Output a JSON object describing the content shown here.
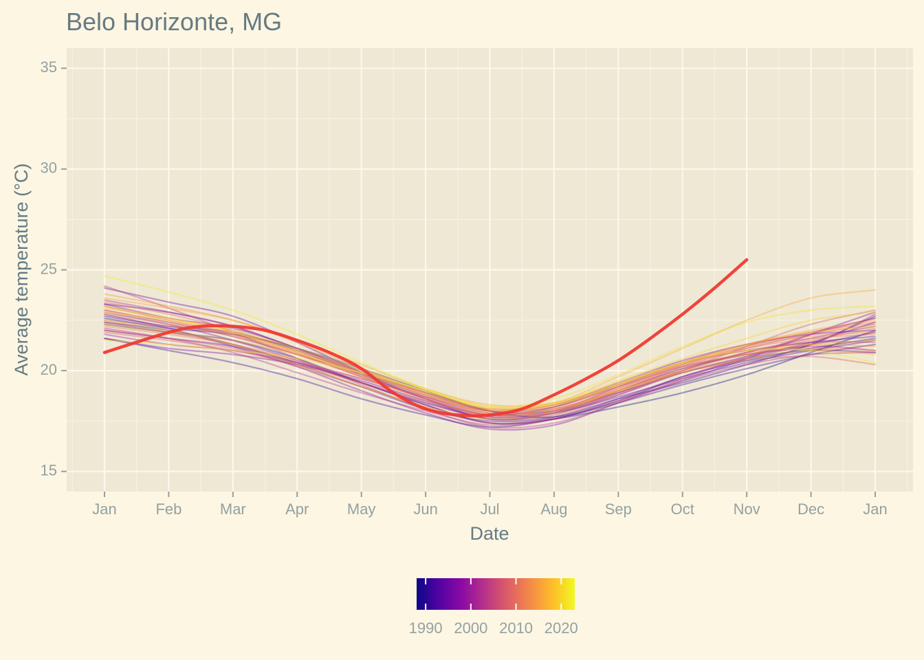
{
  "chart_data": {
    "type": "line",
    "title": "Belo Horizonte, MG",
    "xlabel": "Date",
    "ylabel": "Average temperature (°C)",
    "ylim": [
      14,
      36
    ],
    "yticks": [
      15,
      20,
      25,
      30,
      35
    ],
    "x_tick_labels": [
      "Jan",
      "Feb",
      "Mar",
      "Apr",
      "May",
      "Jun",
      "Jul",
      "Aug",
      "Sep",
      "Oct",
      "Nov",
      "Dec",
      "Jan"
    ],
    "x_month_index": [
      1,
      2,
      3,
      4,
      5,
      6,
      7,
      8,
      9,
      10,
      11,
      12,
      13
    ],
    "grid": true,
    "legend": {
      "type": "colorbar",
      "placement": "bottom",
      "range": [
        1988,
        2023
      ],
      "labels": [
        "1990",
        "2000",
        "2010",
        "2020"
      ],
      "label_values": [
        1990,
        2000,
        2010,
        2020
      ],
      "colors": [
        "#0d0887",
        "#5302a3",
        "#8b0aa5",
        "#b83289",
        "#db5c68",
        "#f48849",
        "#febc2a",
        "#f0f921"
      ]
    },
    "highlight_series": {
      "name": "2023",
      "color": "#f03a32",
      "x": [
        1,
        2,
        2.5,
        3,
        3.5,
        4,
        4.5,
        5,
        5.5,
        6,
        6.5,
        7,
        7.5,
        8,
        8.5,
        9,
        9.5,
        10,
        10.5,
        11
      ],
      "y": [
        20.9,
        21.9,
        22.2,
        22.2,
        22.0,
        21.5,
        20.9,
        20.1,
        18.9,
        18.1,
        17.8,
        17.8,
        18.1,
        18.8,
        19.6,
        20.5,
        21.6,
        22.8,
        24.1,
        25.5
      ]
    },
    "background_series": [
      {
        "year": 1988,
        "y": [
          22.3,
          21.9,
          21.5,
          20.6,
          19.4,
          18.3,
          17.4,
          17.6,
          18.2,
          18.9,
          19.8,
          20.9,
          22.0
        ]
      },
      {
        "year": 1989,
        "y": [
          22.6,
          22.1,
          21.8,
          21.1,
          20.1,
          19.0,
          18.0,
          17.7,
          18.5,
          19.7,
          20.5,
          21.1,
          21.6
        ]
      },
      {
        "year": 1990,
        "y": [
          22.4,
          22.0,
          21.3,
          20.3,
          19.2,
          18.1,
          17.5,
          17.7,
          18.6,
          19.4,
          20.3,
          21.3,
          22.7
        ]
      },
      {
        "year": 1991,
        "y": [
          21.6,
          21.0,
          20.4,
          19.6,
          18.6,
          17.8,
          17.2,
          17.6,
          18.4,
          19.3,
          20.1,
          20.8,
          21.3
        ]
      },
      {
        "year": 1992,
        "y": [
          22.7,
          22.2,
          21.9,
          21.0,
          19.8,
          18.6,
          17.6,
          17.9,
          19.0,
          20.1,
          20.8,
          21.3,
          21.9
        ]
      },
      {
        "year": 1993,
        "y": [
          23.3,
          22.9,
          22.2,
          21.1,
          20.0,
          18.9,
          18.0,
          18.0,
          18.9,
          19.9,
          20.6,
          21.0,
          20.9
        ]
      },
      {
        "year": 1994,
        "y": [
          22.0,
          21.6,
          21.2,
          20.4,
          19.4,
          18.4,
          17.7,
          17.9,
          18.7,
          19.6,
          20.4,
          21.0,
          21.5
        ]
      },
      {
        "year": 1995,
        "y": [
          24.1,
          23.4,
          22.7,
          21.4,
          19.9,
          18.6,
          17.8,
          18.2,
          19.3,
          20.4,
          21.0,
          21.4,
          21.7
        ]
      },
      {
        "year": 1996,
        "y": [
          21.6,
          21.1,
          20.8,
          20.3,
          19.5,
          18.5,
          17.6,
          17.9,
          18.8,
          19.9,
          20.7,
          21.4,
          22.4
        ]
      },
      {
        "year": 1997,
        "y": [
          22.8,
          22.1,
          21.2,
          20.2,
          19.0,
          17.9,
          17.1,
          17.3,
          18.4,
          19.5,
          20.6,
          21.8,
          22.9
        ]
      },
      {
        "year": 1998,
        "y": [
          23.3,
          22.6,
          22.1,
          21.1,
          19.9,
          18.9,
          18.1,
          18.3,
          19.4,
          20.5,
          21.3,
          21.8,
          22.0
        ]
      },
      {
        "year": 1999,
        "y": [
          22.9,
          22.3,
          21.5,
          20.5,
          19.4,
          18.3,
          17.4,
          17.6,
          18.6,
          19.7,
          20.6,
          21.2,
          21.0
        ]
      },
      {
        "year": 2000,
        "y": [
          21.8,
          21.3,
          21.0,
          20.4,
          19.6,
          18.7,
          17.9,
          18.1,
          19.0,
          20.0,
          20.9,
          21.6,
          22.2
        ]
      },
      {
        "year": 2001,
        "y": [
          23.0,
          22.4,
          21.7,
          20.8,
          19.8,
          18.8,
          18.0,
          18.2,
          19.2,
          20.2,
          20.8,
          21.3,
          22.8
        ]
      },
      {
        "year": 2002,
        "y": [
          23.5,
          22.9,
          22.2,
          21.1,
          19.9,
          18.7,
          17.8,
          18.0,
          19.2,
          20.4,
          21.3,
          21.9,
          22.6
        ]
      },
      {
        "year": 2003,
        "y": [
          22.1,
          21.6,
          20.9,
          19.9,
          18.9,
          18.0,
          17.3,
          17.6,
          18.5,
          19.5,
          20.3,
          20.8,
          20.9
        ]
      },
      {
        "year": 2004,
        "y": [
          24.2,
          23.1,
          21.9,
          20.6,
          19.3,
          18.1,
          17.2,
          17.4,
          18.4,
          19.6,
          20.7,
          21.8,
          22.6
        ]
      },
      {
        "year": 2005,
        "y": [
          22.4,
          21.9,
          21.3,
          20.4,
          19.4,
          18.4,
          17.6,
          17.8,
          18.9,
          20.0,
          20.9,
          21.4,
          21.4
        ]
      },
      {
        "year": 2006,
        "y": [
          23.2,
          22.5,
          21.8,
          20.8,
          19.7,
          18.6,
          17.7,
          17.9,
          19.0,
          20.2,
          21.1,
          21.8,
          22.3
        ]
      },
      {
        "year": 2007,
        "y": [
          22.0,
          21.6,
          21.1,
          20.2,
          19.2,
          18.2,
          17.4,
          17.7,
          18.8,
          20.0,
          21.2,
          22.3,
          23.0
        ]
      },
      {
        "year": 2008,
        "y": [
          21.9,
          21.5,
          21.0,
          20.3,
          19.4,
          18.5,
          17.8,
          18.0,
          18.9,
          19.9,
          20.5,
          20.7,
          20.3
        ]
      },
      {
        "year": 2009,
        "y": [
          22.5,
          22.2,
          21.8,
          21.0,
          19.9,
          18.8,
          17.9,
          18.1,
          19.1,
          20.3,
          21.2,
          21.9,
          22.4
        ]
      },
      {
        "year": 2010,
        "y": [
          23.4,
          22.8,
          22.0,
          20.9,
          19.7,
          18.6,
          17.8,
          18.0,
          19.0,
          20.1,
          20.9,
          21.5,
          22.1
        ]
      },
      {
        "year": 2011,
        "y": [
          22.2,
          21.8,
          21.3,
          20.5,
          19.6,
          18.7,
          18.0,
          18.3,
          19.3,
          20.3,
          21.1,
          21.6,
          21.8
        ]
      },
      {
        "year": 2012,
        "y": [
          22.8,
          22.3,
          21.7,
          20.8,
          19.7,
          18.6,
          17.8,
          18.0,
          19.1,
          20.2,
          20.8,
          21.1,
          21.0
        ]
      },
      {
        "year": 2013,
        "y": [
          23.0,
          22.4,
          21.8,
          20.9,
          19.9,
          18.9,
          18.1,
          18.3,
          19.2,
          20.3,
          21.2,
          21.7,
          21.9
        ]
      },
      {
        "year": 2014,
        "y": [
          23.8,
          23.2,
          22.5,
          21.4,
          20.1,
          18.9,
          18.0,
          18.2,
          19.3,
          20.4,
          21.0,
          21.3,
          21.2
        ]
      },
      {
        "year": 2015,
        "y": [
          23.6,
          23.1,
          22.5,
          21.5,
          20.3,
          19.1,
          18.3,
          18.4,
          19.3,
          20.4,
          21.3,
          22.0,
          22.5
        ]
      },
      {
        "year": 2016,
        "y": [
          22.3,
          21.9,
          21.5,
          20.8,
          19.9,
          18.9,
          18.1,
          18.4,
          19.7,
          21.1,
          22.5,
          23.6,
          24.0
        ]
      },
      {
        "year": 2017,
        "y": [
          22.5,
          22.0,
          21.3,
          20.3,
          19.2,
          18.2,
          17.6,
          17.9,
          19.0,
          20.0,
          20.8,
          21.3,
          21.5
        ]
      },
      {
        "year": 2018,
        "y": [
          23.2,
          22.6,
          21.9,
          20.9,
          19.8,
          18.8,
          17.9,
          18.1,
          19.0,
          19.9,
          20.6,
          21.0,
          20.8
        ]
      },
      {
        "year": 2019,
        "y": [
          23.1,
          22.6,
          22.0,
          21.1,
          20.1,
          19.1,
          18.2,
          18.4,
          19.4,
          20.4,
          21.3,
          21.9,
          22.2
        ]
      },
      {
        "year": 2020,
        "y": [
          22.9,
          22.5,
          21.9,
          21.0,
          20.0,
          19.0,
          18.2,
          18.4,
          19.5,
          20.6,
          21.6,
          22.5,
          22.9
        ]
      },
      {
        "year": 2021,
        "y": [
          21.5,
          21.3,
          21.0,
          20.6,
          19.9,
          19.0,
          18.2,
          18.6,
          19.8,
          21.2,
          22.4,
          23.0,
          23.2
        ]
      },
      {
        "year": 2022,
        "y": [
          24.7,
          23.9,
          23.0,
          21.8,
          20.4,
          19.1,
          18.1,
          18.3,
          19.3,
          20.4,
          21.0,
          21.0,
          20.4
        ]
      }
    ]
  }
}
